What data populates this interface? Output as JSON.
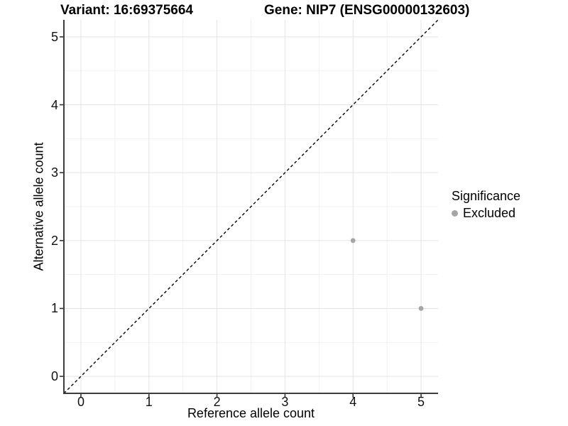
{
  "titles": {
    "left": "Variant: 16:69375664",
    "right": "Gene: NIP7 (ENSG00000132603)"
  },
  "chart_data": {
    "type": "scatter",
    "title": "Variant: 16:69375664 / Gene: NIP7 (ENSG00000132603)",
    "xlabel": "Reference allele count",
    "ylabel": "Alternative allele count",
    "xlim": [
      -0.25,
      5.25
    ],
    "ylim": [
      -0.25,
      5.25
    ],
    "xticks": [
      0,
      1,
      2,
      3,
      4,
      5
    ],
    "yticks": [
      0,
      1,
      2,
      3,
      4,
      5
    ],
    "xminor": [
      0.5,
      1.5,
      2.5,
      3.5,
      4.5
    ],
    "yminor": [
      0.5,
      1.5,
      2.5,
      3.5,
      4.5
    ],
    "grid": true,
    "identity_line": {
      "style": "dashed",
      "color": "#000000",
      "from": [
        -0.25,
        -0.25
      ],
      "to": [
        5.25,
        5.25
      ]
    },
    "series": [
      {
        "name": "Excluded",
        "color": "#a6a6a6",
        "point_radius": 3.4,
        "points": [
          [
            4,
            2
          ],
          [
            5,
            1
          ]
        ]
      }
    ],
    "legend": {
      "title": "Significance",
      "position": "right",
      "items": [
        {
          "label": "Excluded",
          "color": "#a6a6a6"
        }
      ]
    },
    "colors": {
      "axis_line": "#3c3c3c",
      "tick": "#333333",
      "grid_major": "#e3e3e3",
      "grid_minor": "#f1f1f1",
      "text": "#000000"
    }
  }
}
